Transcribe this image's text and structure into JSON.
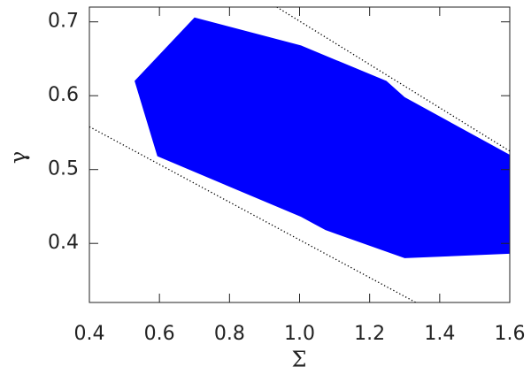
{
  "chart_data": {
    "type": "region",
    "x_label": "Σ",
    "y_label": "γ",
    "xlim": [
      0.4,
      1.6
    ],
    "xticks": [
      0.4,
      0.6,
      0.8,
      {
        "value": 1.0,
        "label": "1.0"
      },
      1.2,
      1.4,
      1.6
    ],
    "ylim": [
      0.32,
      0.72
    ],
    "yticks": [
      0.4,
      0.5,
      0.6,
      0.7
    ],
    "region": {
      "color": "#0000ff",
      "x": [
        0.529,
        0.7,
        1.004,
        1.248,
        1.3,
        1.6,
        1.6,
        1.3,
        1.074,
        1.004,
        0.594
      ],
      "y": [
        0.62,
        0.706,
        0.668,
        0.62,
        0.598,
        0.52,
        0.386,
        0.38,
        0.418,
        0.436,
        0.518
      ]
    },
    "series": [
      {
        "color": "#000000",
        "x": [
          0.4,
          1.332
        ],
        "values": [
          0.558,
          0.32
        ]
      },
      {
        "color": "#000000",
        "x": [
          0.935,
          1.6
        ],
        "values": [
          0.72,
          0.525
        ]
      }
    ]
  }
}
